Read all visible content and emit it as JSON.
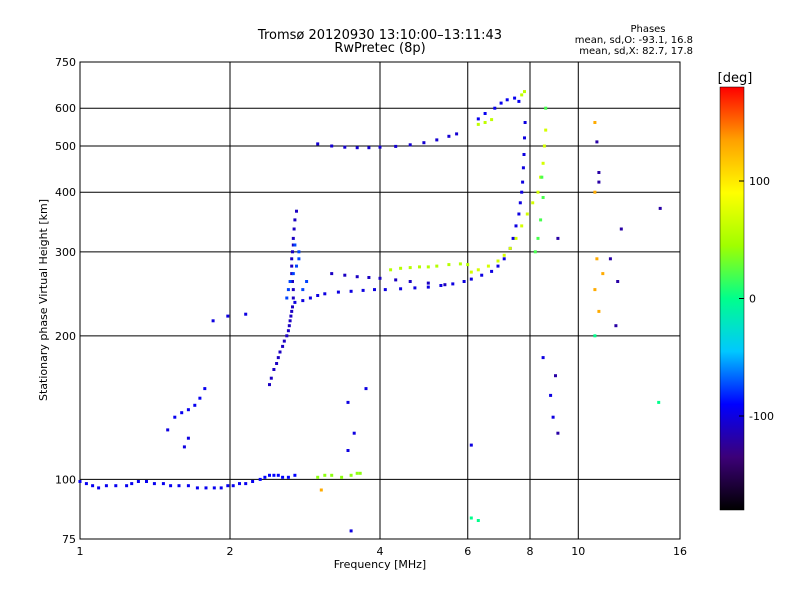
{
  "chart_data": {
    "type": "scatter",
    "title": "Tromsø 20120930 13:10:00–13:11:43",
    "subtitle": "RwPretec (8p)",
    "xlabel": "Frequency [MHz]",
    "ylabel": "Stationary phase Virtual Height [km]",
    "x_scale": "log",
    "y_scale": "log",
    "xlim": [
      1,
      16
    ],
    "ylim": [
      75,
      750
    ],
    "x_ticks": [
      1,
      2,
      4,
      6,
      8,
      10,
      16
    ],
    "y_ticks": [
      75,
      100,
      200,
      300,
      400,
      500,
      600,
      750
    ],
    "x_grid_lines": [
      2,
      4,
      6,
      8,
      10
    ],
    "y_grid_lines": [
      100,
      200,
      300,
      400,
      500,
      600
    ],
    "grid": true,
    "phase_info": {
      "title": "Phases",
      "line1": "mean, sd,O: -93.1, 16.8",
      "line2": "mean, sd,X:  82.7, 17.8"
    },
    "colorbar": {
      "label": "[deg]",
      "range": [
        -180,
        180
      ],
      "ticks": [
        100,
        0,
        -100
      ],
      "tick_labels": [
        "100",
        "0",
        "-100"
      ],
      "colors": [
        "#000000",
        "#3c0078",
        "#0000ff",
        "#00c8ff",
        "#00ff8c",
        "#a0ff00",
        "#ffff00",
        "#ffa000",
        "#ff0000"
      ]
    },
    "series": [
      {
        "phase": -95,
        "points": [
          [
            1.0,
            99
          ],
          [
            1.03,
            98
          ],
          [
            1.06,
            97
          ],
          [
            1.09,
            96
          ],
          [
            1.13,
            97
          ],
          [
            1.18,
            97
          ],
          [
            1.24,
            97
          ],
          [
            1.27,
            98
          ],
          [
            1.31,
            99
          ],
          [
            1.36,
            99
          ],
          [
            1.41,
            98
          ],
          [
            1.47,
            98
          ],
          [
            1.52,
            97
          ],
          [
            1.58,
            97
          ],
          [
            1.65,
            97
          ],
          [
            1.72,
            96
          ],
          [
            1.79,
            96
          ],
          [
            1.86,
            96
          ],
          [
            1.92,
            96
          ],
          [
            1.98,
            97
          ],
          [
            2.03,
            97
          ],
          [
            2.09,
            98
          ],
          [
            2.15,
            98
          ],
          [
            2.22,
            99
          ]
        ]
      },
      {
        "phase": -90,
        "points": [
          [
            2.3,
            100
          ],
          [
            2.35,
            101
          ],
          [
            2.4,
            102
          ],
          [
            2.45,
            102
          ],
          [
            2.5,
            102
          ],
          [
            2.55,
            101
          ],
          [
            2.62,
            101
          ],
          [
            2.7,
            102
          ]
        ]
      },
      {
        "phase": 40,
        "points": [
          [
            3.0,
            101
          ],
          [
            3.1,
            102
          ],
          [
            3.2,
            102
          ],
          [
            3.35,
            101
          ],
          [
            3.5,
            102
          ],
          [
            3.6,
            103
          ],
          [
            3.65,
            103
          ]
        ]
      },
      {
        "phase": -95,
        "points": [
          [
            1.55,
            135
          ],
          [
            1.6,
            138
          ],
          [
            1.65,
            140
          ],
          [
            1.7,
            143
          ],
          [
            1.74,
            148
          ],
          [
            1.78,
            155
          ]
        ]
      },
      {
        "phase": -100,
        "points": [
          [
            1.5,
            127
          ],
          [
            1.65,
            122
          ],
          [
            1.62,
            117
          ]
        ]
      },
      {
        "phase": -110,
        "points": [
          [
            2.4,
            158
          ],
          [
            2.42,
            163
          ],
          [
            2.45,
            170
          ],
          [
            2.48,
            175
          ],
          [
            2.5,
            180
          ],
          [
            2.52,
            185
          ],
          [
            2.55,
            190
          ],
          [
            2.57,
            195
          ],
          [
            2.6,
            200
          ],
          [
            2.62,
            205
          ],
          [
            2.63,
            210
          ],
          [
            2.64,
            215
          ],
          [
            2.65,
            220
          ],
          [
            2.66,
            225
          ],
          [
            2.67,
            230
          ],
          [
            2.68,
            240
          ],
          [
            2.68,
            250
          ],
          [
            2.67,
            260
          ],
          [
            2.66,
            270
          ],
          [
            2.66,
            280
          ],
          [
            2.66,
            290
          ],
          [
            2.67,
            300
          ],
          [
            2.68,
            310
          ],
          [
            2.68,
            320
          ],
          [
            2.69,
            335
          ],
          [
            2.7,
            350
          ],
          [
            2.72,
            365
          ]
        ]
      },
      {
        "phase": -75,
        "points": [
          [
            2.6,
            240
          ],
          [
            2.62,
            250
          ],
          [
            2.64,
            260
          ],
          [
            2.68,
            270
          ],
          [
            2.72,
            280
          ],
          [
            2.75,
            290
          ],
          [
            2.8,
            250
          ],
          [
            2.85,
            260
          ],
          [
            2.75,
            300
          ],
          [
            2.7,
            310
          ]
        ]
      },
      {
        "phase": -100,
        "points": [
          [
            2.7,
            235
          ],
          [
            2.8,
            237
          ],
          [
            2.9,
            240
          ],
          [
            3.0,
            243
          ],
          [
            3.1,
            245
          ],
          [
            3.3,
            247
          ],
          [
            3.5,
            248
          ],
          [
            3.7,
            249
          ],
          [
            3.9,
            250
          ],
          [
            4.1,
            250
          ],
          [
            4.4,
            251
          ],
          [
            4.7,
            252
          ],
          [
            5.0,
            253
          ],
          [
            5.3,
            255
          ],
          [
            5.6,
            257
          ],
          [
            5.9,
            260
          ],
          [
            6.1,
            263
          ],
          [
            6.4,
            268
          ],
          [
            6.7,
            273
          ],
          [
            6.9,
            280
          ],
          [
            7.1,
            290
          ],
          [
            7.3,
            305
          ],
          [
            7.4,
            320
          ],
          [
            7.5,
            340
          ],
          [
            7.6,
            360
          ],
          [
            7.65,
            380
          ],
          [
            7.7,
            400
          ],
          [
            7.73,
            420
          ],
          [
            7.76,
            450
          ],
          [
            7.78,
            480
          ],
          [
            7.8,
            520
          ],
          [
            7.82,
            560
          ]
        ]
      },
      {
        "phase": -110,
        "points": [
          [
            3.2,
            270
          ],
          [
            3.4,
            268
          ],
          [
            3.6,
            266
          ],
          [
            3.8,
            265
          ],
          [
            4.0,
            264
          ],
          [
            4.3,
            262
          ],
          [
            4.6,
            260
          ],
          [
            5.0,
            258
          ],
          [
            5.4,
            256
          ]
        ]
      },
      {
        "phase": 55,
        "points": [
          [
            4.2,
            275
          ],
          [
            4.4,
            277
          ],
          [
            4.6,
            278
          ],
          [
            4.8,
            279
          ],
          [
            5.0,
            279
          ],
          [
            5.2,
            280
          ],
          [
            5.5,
            282
          ],
          [
            5.8,
            283
          ],
          [
            6.0,
            282
          ]
        ]
      },
      {
        "phase": 70,
        "points": [
          [
            6.1,
            272
          ],
          [
            6.3,
            275
          ],
          [
            6.6,
            280
          ],
          [
            6.9,
            287
          ],
          [
            7.1,
            295
          ],
          [
            7.3,
            305
          ],
          [
            7.5,
            320
          ],
          [
            7.7,
            340
          ],
          [
            7.9,
            360
          ],
          [
            8.1,
            380
          ],
          [
            8.3,
            400
          ],
          [
            8.4,
            430
          ],
          [
            8.5,
            460
          ],
          [
            8.55,
            500
          ],
          [
            8.6,
            540
          ]
        ]
      },
      {
        "phase": 20,
        "points": [
          [
            8.2,
            300
          ],
          [
            8.3,
            320
          ],
          [
            8.4,
            350
          ],
          [
            8.5,
            390
          ],
          [
            8.45,
            430
          ],
          [
            8.6,
            600
          ]
        ]
      },
      {
        "phase": -105,
        "points": [
          [
            3.0,
            505
          ],
          [
            3.2,
            500
          ],
          [
            3.4,
            497
          ],
          [
            3.6,
            496
          ],
          [
            3.8,
            496
          ],
          [
            4.0,
            497
          ],
          [
            4.3,
            499
          ],
          [
            4.6,
            503
          ],
          [
            4.9,
            508
          ],
          [
            5.2,
            515
          ],
          [
            5.5,
            524
          ],
          [
            5.7,
            530
          ]
        ]
      },
      {
        "phase": -95,
        "points": [
          [
            6.3,
            570
          ],
          [
            6.5,
            585
          ],
          [
            6.8,
            600
          ],
          [
            7.0,
            615
          ],
          [
            7.2,
            625
          ],
          [
            7.45,
            630
          ],
          [
            7.6,
            620
          ]
        ]
      },
      {
        "phase": 60,
        "points": [
          [
            6.3,
            555
          ],
          [
            6.5,
            560
          ],
          [
            6.7,
            568
          ],
          [
            7.7,
            640
          ],
          [
            7.8,
            650
          ]
        ]
      },
      {
        "phase": 130,
        "points": [
          [
            10.8,
            560
          ],
          [
            10.8,
            400
          ],
          [
            10.9,
            290
          ],
          [
            11.2,
            270
          ],
          [
            10.8,
            250
          ],
          [
            11.0,
            225
          ],
          [
            3.05,
            95
          ]
        ]
      },
      {
        "phase": -120,
        "points": [
          [
            10.9,
            510
          ],
          [
            11.0,
            440
          ],
          [
            11.0,
            420
          ],
          [
            12.2,
            335
          ],
          [
            11.6,
            290
          ],
          [
            12.0,
            260
          ],
          [
            11.9,
            210
          ],
          [
            14.6,
            370
          ],
          [
            9.1,
            320
          ],
          [
            9.0,
            165
          ],
          [
            9.1,
            125
          ]
        ]
      },
      {
        "phase": 0,
        "points": [
          [
            14.5,
            145
          ],
          [
            10.8,
            200
          ],
          [
            6.3,
            82
          ],
          [
            6.1,
            83
          ]
        ]
      },
      {
        "phase": -100,
        "points": [
          [
            1.85,
            215
          ],
          [
            1.98,
            220
          ],
          [
            2.15,
            222
          ],
          [
            3.75,
            155
          ],
          [
            3.45,
            145
          ],
          [
            3.55,
            125
          ],
          [
            3.45,
            115
          ],
          [
            3.5,
            78
          ],
          [
            6.1,
            118
          ],
          [
            8.5,
            180
          ],
          [
            8.8,
            150
          ],
          [
            8.9,
            135
          ]
        ]
      }
    ]
  }
}
